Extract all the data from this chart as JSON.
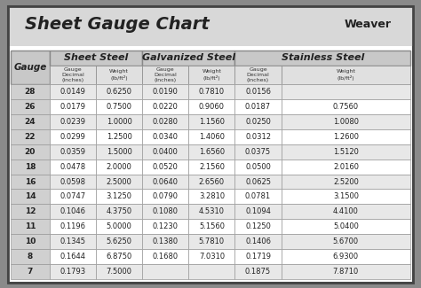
{
  "title": "Sheet Gauge Chart",
  "background_outer": "#8a8a8a",
  "background_inner": "#ffffff",
  "header_bg": "#d0d0d0",
  "row_bg_odd": "#e8e8e8",
  "row_bg_even": "#ffffff",
  "col_header_bg": "#c8c8c8",
  "gauges": [
    28,
    26,
    24,
    22,
    20,
    18,
    16,
    14,
    12,
    11,
    10,
    8,
    7
  ],
  "sheet_steel_decimal": [
    "0.0149",
    "0.0179",
    "0.0239",
    "0.0299",
    "0.0359",
    "0.0478",
    "0.0598",
    "0.0747",
    "0.1046",
    "0.1196",
    "0.1345",
    "0.1644",
    "0.1793"
  ],
  "sheet_steel_weight": [
    "0.6250",
    "0.7500",
    "1.0000",
    "1.2500",
    "1.5000",
    "2.0000",
    "2.5000",
    "3.1250",
    "4.3750",
    "5.0000",
    "5.6250",
    "6.8750",
    "7.5000"
  ],
  "galv_steel_decimal": [
    "0.0190",
    "0.0220",
    "0.0280",
    "0.0340",
    "0.0400",
    "0.0520",
    "0.0640",
    "0.0790",
    "0.1080",
    "0.1230",
    "0.1380",
    "0.1680",
    ""
  ],
  "galv_steel_weight": [
    "0.7810",
    "0.9060",
    "1.1560",
    "1.4060",
    "1.6560",
    "2.1560",
    "2.6560",
    "3.2810",
    "4.5310",
    "5.1560",
    "5.7810",
    "7.0310",
    ""
  ],
  "stainless_decimal": [
    "0.0156",
    "0.0187",
    "0.0250",
    "0.0312",
    "0.0375",
    "0.0500",
    "0.0625",
    "0.0781",
    "0.1094",
    "0.1250",
    "0.1406",
    "0.1719",
    "0.1875"
  ],
  "stainless_weight": [
    "",
    "0.7560",
    "1.0080",
    "1.2600",
    "1.5120",
    "2.0160",
    "2.5200",
    "3.1500",
    "4.4100",
    "5.0400",
    "5.6700",
    "6.9300",
    "7.8710"
  ]
}
